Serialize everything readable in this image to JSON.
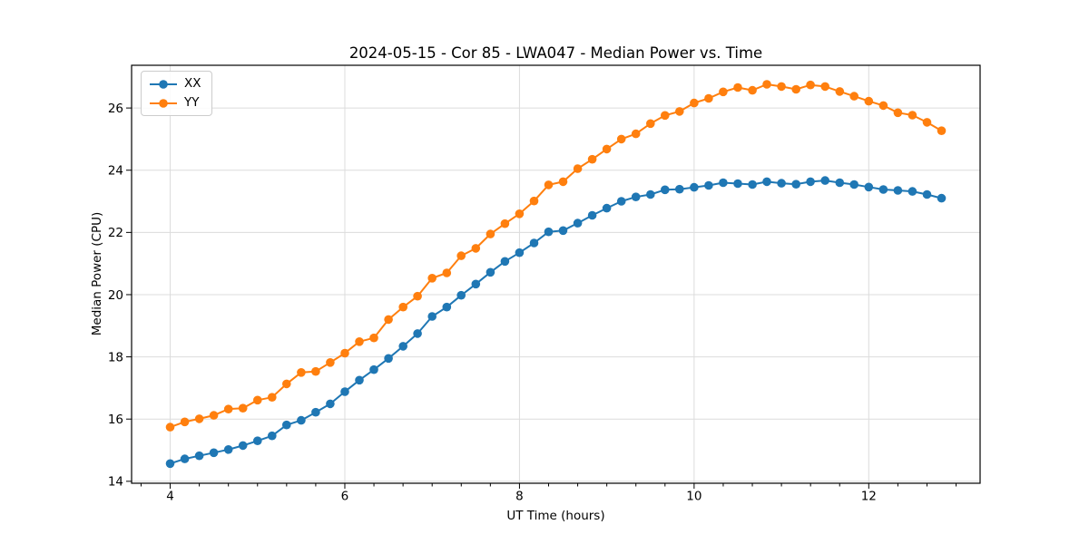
{
  "chart_data": {
    "type": "line",
    "title": "2024-05-15 - Cor 85 - LWA047 - Median Power vs. Time",
    "xlabel": "UT Time (hours)",
    "ylabel": "Median Power (CPU)",
    "x": [
      4.0,
      4.167,
      4.333,
      4.5,
      4.667,
      4.833,
      5.0,
      5.167,
      5.333,
      5.5,
      5.667,
      5.833,
      6.0,
      6.167,
      6.333,
      6.5,
      6.667,
      6.833,
      7.0,
      7.167,
      7.333,
      7.5,
      7.667,
      7.833,
      8.0,
      8.167,
      8.333,
      8.5,
      8.667,
      8.833,
      9.0,
      9.167,
      9.333,
      9.5,
      9.667,
      9.833,
      10.0,
      10.167,
      10.333,
      10.5,
      10.667,
      10.833,
      11.0,
      11.167,
      11.333,
      11.5,
      11.667,
      11.833,
      12.0,
      12.167,
      12.333,
      12.5,
      12.667,
      12.833
    ],
    "series": [
      {
        "name": "XX",
        "color": "#1f77b4",
        "values": [
          14.57,
          14.72,
          14.82,
          14.92,
          15.02,
          15.15,
          15.3,
          15.46,
          15.81,
          15.96,
          16.22,
          16.49,
          16.88,
          17.25,
          17.59,
          17.95,
          18.34,
          18.75,
          19.3,
          19.6,
          19.98,
          20.34,
          20.72,
          21.07,
          21.35,
          21.66,
          22.02,
          22.06,
          22.3,
          22.55,
          22.78,
          23.0,
          23.14,
          23.22,
          23.37,
          23.39,
          23.45,
          23.51,
          23.6,
          23.57,
          23.54,
          23.63,
          23.58,
          23.55,
          23.63,
          23.67,
          23.6,
          23.54,
          23.46,
          23.38,
          23.35,
          23.32,
          23.22,
          23.1
        ]
      },
      {
        "name": "YY",
        "color": "#ff7f0e",
        "values": [
          15.74,
          15.91,
          16.01,
          16.12,
          16.32,
          16.35,
          16.61,
          16.7,
          17.13,
          17.5,
          17.53,
          17.82,
          18.12,
          18.49,
          18.61,
          19.2,
          19.6,
          19.95,
          20.53,
          20.7,
          21.25,
          21.49,
          21.95,
          22.28,
          22.6,
          23.01,
          23.53,
          23.63,
          24.05,
          24.35,
          24.68,
          25.0,
          25.17,
          25.5,
          25.76,
          25.89,
          26.16,
          26.31,
          26.52,
          26.66,
          26.57,
          26.76,
          26.69,
          26.6,
          26.74,
          26.69,
          26.53,
          26.38,
          26.22,
          26.08,
          25.85,
          25.77,
          25.54,
          25.27
        ]
      }
    ],
    "xlim": [
      3.558,
      13.275
    ],
    "ylim": [
      13.937,
      27.373
    ],
    "xticks": [
      4,
      6,
      8,
      10,
      12
    ],
    "xtick_labels": [
      "4",
      "6",
      "8",
      "10",
      "12"
    ],
    "x_minor_tick_step": 0.3333,
    "yticks": [
      14,
      16,
      18,
      20,
      22,
      24,
      26
    ],
    "ytick_labels": [
      "14",
      "16",
      "18",
      "20",
      "22",
      "24",
      "26"
    ],
    "grid": true,
    "legend": {
      "position": "upper-left",
      "entries": [
        "XX",
        "YY"
      ]
    },
    "marker": "circle",
    "colors": {
      "grid": "#dcdcdc",
      "spine": "#000000",
      "text": "#000000",
      "background": "#ffffff"
    }
  }
}
